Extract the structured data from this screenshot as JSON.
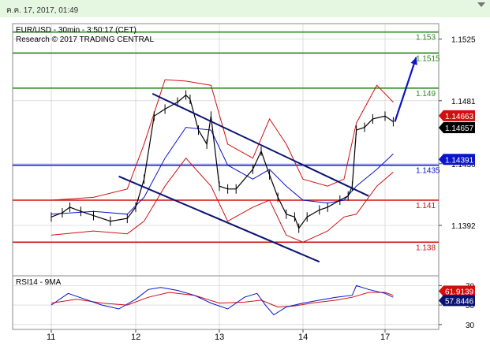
{
  "header": {
    "date_time": "ค.ค. 17, 2017, 01:49"
  },
  "chart_data": [
    {
      "type": "line",
      "title": "EUR/USD - 30min - 3:50:17 (CET)",
      "subtitle": "Research © 2017 TRADING CENTRAL",
      "x_tick_labels": [
        "11",
        "12",
        "13",
        "14",
        "17"
      ],
      "y_tick_labels": [
        "1.1525",
        "1.1481",
        "1.1436",
        "1.1392"
      ],
      "ylim": [
        1.1356,
        1.1536
      ],
      "grid": true,
      "price_series": [
        [
          0,
          1.1398
        ],
        [
          0.13,
          1.1401
        ],
        [
          0.22,
          1.1405
        ],
        [
          0.35,
          1.1402
        ],
        [
          0.5,
          1.1399
        ],
        [
          0.7,
          1.1395
        ],
        [
          0.9,
          1.1397
        ],
        [
          1.0,
          1.1405
        ],
        [
          1.1,
          1.1425
        ],
        [
          1.22,
          1.147
        ],
        [
          1.35,
          1.1475
        ],
        [
          1.5,
          1.148
        ],
        [
          1.6,
          1.1485
        ],
        [
          1.65,
          1.1482
        ],
        [
          1.75,
          1.146
        ],
        [
          1.85,
          1.145
        ],
        [
          1.9,
          1.147
        ],
        [
          2.0,
          1.142
        ],
        [
          2.1,
          1.1418
        ],
        [
          2.2,
          1.1418
        ],
        [
          2.4,
          1.1432
        ],
        [
          2.5,
          1.1445
        ],
        [
          2.6,
          1.1428
        ],
        [
          2.7,
          1.1412
        ],
        [
          2.8,
          1.14
        ],
        [
          2.9,
          1.1398
        ],
        [
          2.95,
          1.139
        ],
        [
          3.05,
          1.1398
        ],
        [
          3.2,
          1.1403
        ],
        [
          3.3,
          1.1405
        ],
        [
          3.45,
          1.141
        ],
        [
          3.55,
          1.1413
        ],
        [
          3.6,
          1.142
        ],
        [
          3.65,
          1.146
        ],
        [
          3.75,
          1.1462
        ],
        [
          3.85,
          1.1468
        ],
        [
          4.0,
          1.147
        ],
        [
          4.1,
          1.1466
        ]
      ],
      "bollinger_upper": [
        [
          0,
          1.141
        ],
        [
          0.5,
          1.1412
        ],
        [
          0.9,
          1.1418
        ],
        [
          1.1,
          1.145
        ],
        [
          1.35,
          1.1496
        ],
        [
          1.6,
          1.1495
        ],
        [
          1.9,
          1.1492
        ],
        [
          2.1,
          1.145
        ],
        [
          2.4,
          1.144
        ],
        [
          2.6,
          1.1468
        ],
        [
          2.8,
          1.145
        ],
        [
          3.0,
          1.1425
        ],
        [
          3.3,
          1.142
        ],
        [
          3.5,
          1.1425
        ],
        [
          3.65,
          1.1465
        ],
        [
          3.9,
          1.1492
        ],
        [
          4.1,
          1.148
        ]
      ],
      "bollinger_lower": [
        [
          0,
          1.1385
        ],
        [
          0.5,
          1.1388
        ],
        [
          0.9,
          1.1386
        ],
        [
          1.1,
          1.1395
        ],
        [
          1.35,
          1.142
        ],
        [
          1.6,
          1.144
        ],
        [
          1.9,
          1.142
        ],
        [
          2.1,
          1.1395
        ],
        [
          2.4,
          1.1405
        ],
        [
          2.6,
          1.141
        ],
        [
          2.8,
          1.1385
        ],
        [
          3.0,
          1.138
        ],
        [
          3.3,
          1.1388
        ],
        [
          3.5,
          1.1398
        ],
        [
          3.65,
          1.14
        ],
        [
          3.9,
          1.142
        ],
        [
          4.1,
          1.143
        ]
      ],
      "moving_average": [
        [
          0,
          1.14
        ],
        [
          0.5,
          1.1402
        ],
        [
          0.9,
          1.14
        ],
        [
          1.1,
          1.1412
        ],
        [
          1.35,
          1.144
        ],
        [
          1.6,
          1.1462
        ],
        [
          1.9,
          1.146
        ],
        [
          2.1,
          1.1435
        ],
        [
          2.4,
          1.1425
        ],
        [
          2.6,
          1.1432
        ],
        [
          2.8,
          1.142
        ],
        [
          3.0,
          1.141
        ],
        [
          3.3,
          1.1408
        ],
        [
          3.5,
          1.141
        ],
        [
          3.65,
          1.142
        ],
        [
          3.9,
          1.1432
        ],
        [
          4.1,
          1.1443
        ]
      ],
      "trend_channel": [
        {
          "from": [
            1.2,
            1.1486
          ],
          "to": [
            3.8,
            1.1413
          ]
        },
        {
          "from": [
            0.8,
            1.1427
          ],
          "to": [
            3.2,
            1.1366
          ]
        }
      ],
      "projected_path": [
        [
          4.12,
          1.1466
        ],
        [
          4.38,
          1.1512
        ]
      ],
      "levels": [
        {
          "value": 1.153,
          "label": "1.153",
          "color": "#2e8b23"
        },
        {
          "value": 1.1515,
          "label": "1.1515",
          "color": "#2e8b23"
        },
        {
          "value": 1.149,
          "label": "1.149",
          "color": "#2e8b23"
        },
        {
          "value": 1.1435,
          "label": "1.1435",
          "color": "#0a14c8"
        },
        {
          "value": 1.141,
          "label": "1.141",
          "color": "#d01010"
        },
        {
          "value": 1.138,
          "label": "1.138",
          "color": "#d01010"
        }
      ],
      "price_tags": [
        {
          "value": 1.14663,
          "label": "1.14663",
          "color": "#d01010"
        },
        {
          "value": 1.14657,
          "label": "1.14657",
          "color": "#000000"
        },
        {
          "value": 1.14391,
          "label": "1.14391",
          "color": "#0a14c8"
        }
      ],
      "colors": {
        "price": "#000000",
        "bollinger": "#d01010",
        "moving_average": "#0a14c8",
        "channel": "#0a1470",
        "projection": "#0a14c8",
        "grid": "#c8c8c8"
      }
    },
    {
      "type": "line",
      "title": "RSI14 - 9MA",
      "x_tick_labels": [
        "11",
        "12",
        "13",
        "14",
        "17"
      ],
      "y_tick_labels": [
        "70",
        "50",
        "30"
      ],
      "ylim": [
        25,
        80
      ],
      "grid": true,
      "rsi": [
        [
          0,
          50
        ],
        [
          0.2,
          62
        ],
        [
          0.4,
          56
        ],
        [
          0.6,
          50
        ],
        [
          0.8,
          46
        ],
        [
          1.0,
          56
        ],
        [
          1.15,
          66
        ],
        [
          1.3,
          68
        ],
        [
          1.5,
          65
        ],
        [
          1.7,
          60
        ],
        [
          1.9,
          52
        ],
        [
          2.1,
          46
        ],
        [
          2.3,
          58
        ],
        [
          2.45,
          62
        ],
        [
          2.55,
          50
        ],
        [
          2.65,
          40
        ],
        [
          2.8,
          48
        ],
        [
          3.0,
          52
        ],
        [
          3.2,
          55
        ],
        [
          3.4,
          58
        ],
        [
          3.6,
          60
        ],
        [
          3.65,
          70
        ],
        [
          3.8,
          66
        ],
        [
          4.0,
          62
        ],
        [
          4.1,
          58
        ]
      ],
      "ma": [
        [
          0,
          52
        ],
        [
          0.3,
          56
        ],
        [
          0.6,
          52
        ],
        [
          0.9,
          50
        ],
        [
          1.15,
          58
        ],
        [
          1.4,
          63
        ],
        [
          1.7,
          60
        ],
        [
          2.0,
          52
        ],
        [
          2.3,
          53
        ],
        [
          2.5,
          55
        ],
        [
          2.7,
          48
        ],
        [
          2.9,
          49
        ],
        [
          3.1,
          52
        ],
        [
          3.4,
          55
        ],
        [
          3.6,
          58
        ],
        [
          3.8,
          63
        ],
        [
          4.0,
          63
        ],
        [
          4.1,
          60
        ]
      ],
      "tags": [
        {
          "value": 61.9139,
          "label": "61.9139",
          "color": "#d01010"
        },
        {
          "value": 57.8446,
          "label": "57.8446",
          "color": "#0a1470"
        }
      ],
      "colors": {
        "rsi": "#0a14c8",
        "ma": "#d01010",
        "grid": "#c8c8c8"
      }
    }
  ]
}
